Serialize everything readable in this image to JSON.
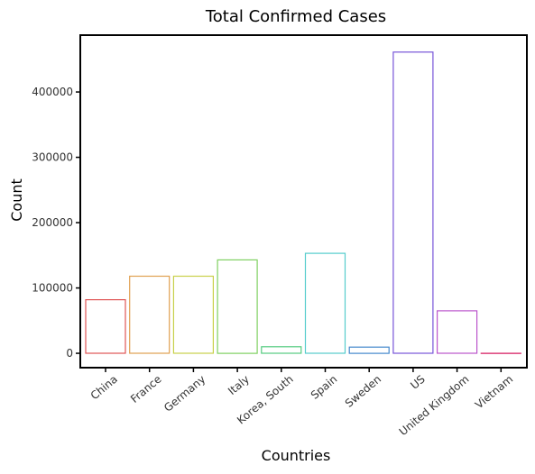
{
  "chart_data": {
    "type": "bar",
    "title": "Total Confirmed Cases",
    "xlabel": "Countries",
    "ylabel": "Count",
    "categories": [
      "China",
      "France",
      "Germany",
      "Italy",
      "Korea, South",
      "Spain",
      "Sweden",
      "US",
      "United Kingdom",
      "Vietnam"
    ],
    "values": [
      82000,
      118000,
      118000,
      143000,
      10000,
      153000,
      9500,
      461000,
      65000,
      250
    ],
    "colors": [
      "#e05555",
      "#e0a050",
      "#c8d04a",
      "#7fd060",
      "#55cc80",
      "#55cccc",
      "#4488cc",
      "#7755d8",
      "#bb55cc",
      "#e05588"
    ],
    "yticks": [
      0,
      100000,
      200000,
      300000,
      400000
    ],
    "ytick_labels": [
      "0",
      "100000",
      "200000",
      "300000",
      "400000"
    ],
    "ylim": [
      -22000,
      487000
    ],
    "grid": false,
    "legend": "none"
  }
}
